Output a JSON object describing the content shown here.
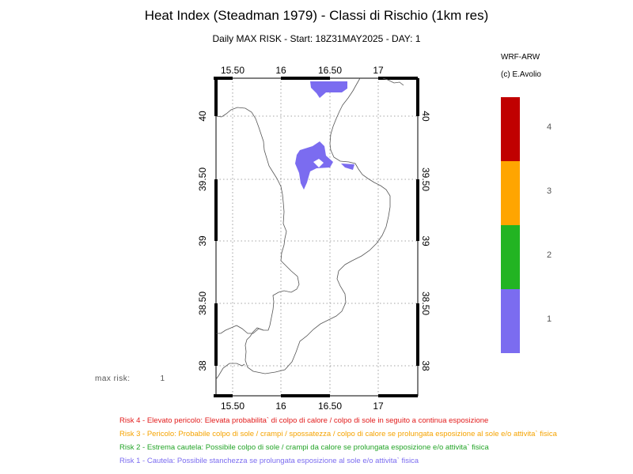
{
  "title": "Heat Index (Steadman 1979) - Classi di Rischio (1km res)",
  "subtitle": "Daily MAX RISK - Start: 18Z31MAY2025 - DAY:       1",
  "model": "WRF-ARW",
  "credit": "(c) E.Avolio",
  "map": {
    "lon_ticks": [
      "15.50",
      "16",
      "16.50",
      "17"
    ],
    "lat_ticks": [
      "40",
      "39.50",
      "39",
      "38.50",
      "38"
    ]
  },
  "colorbar": {
    "classes": [
      {
        "label": "4",
        "color": "#c00000"
      },
      {
        "label": "3",
        "color": "#ffa500"
      },
      {
        "label": "2",
        "color": "#22b422"
      },
      {
        "label": "1",
        "color": "#7b6cf0"
      }
    ]
  },
  "max_risk": {
    "label": "max risk:",
    "value": "1"
  },
  "risk_legend": [
    {
      "text": "Risk 4 - Elevato pericolo: Elevata probabilita` di colpo di calore / colpo di sole in seguito a continua esposizione",
      "color": "#e21b1b"
    },
    {
      "text": "Risk 3 - Pericolo: Probabile colpo di sole / crampi / spossatezza / colpo di calore se prolungata esposizione al sole  e/o attivita` fisica",
      "color": "#f5a300"
    },
    {
      "text": "Risk 2 - Estrema cautela: Possibile colpo di sole / crampi da calore se prolungata esposizione e/o attivita` fisica",
      "color": "#23a427"
    },
    {
      "text": "Risk 1 - Cautela: Possibile stanchezza se prolungata esposizione al sole e/o attivita` fisica",
      "color": "#7b6cf0"
    }
  ]
}
